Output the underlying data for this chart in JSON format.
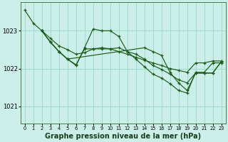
{
  "background_color": "#cceee8",
  "grid_color": "#99ddcc",
  "line_color": "#1a5c1a",
  "xlabel": "Graphe pression niveau de la mer (hPa)",
  "xlabel_fontsize": 7.0,
  "ylabel_ticks": [
    1021,
    1022,
    1023
  ],
  "xlim": [
    -0.5,
    23.5
  ],
  "ylim": [
    1020.55,
    1023.75
  ],
  "xticks": [
    0,
    1,
    2,
    3,
    4,
    5,
    6,
    7,
    8,
    9,
    10,
    11,
    12,
    13,
    14,
    15,
    16,
    17,
    18,
    19,
    20,
    21,
    22,
    23
  ],
  "series1_x": [
    0,
    1,
    2,
    3,
    4,
    5,
    6,
    7,
    8,
    9,
    10,
    11,
    12,
    13,
    14,
    15,
    16,
    17,
    18,
    19,
    20,
    21,
    22,
    23
  ],
  "series1_y": [
    1023.55,
    1023.2,
    1023.0,
    1022.8,
    1022.6,
    1022.5,
    1022.38,
    1022.42,
    1022.52,
    1022.55,
    1022.52,
    1022.45,
    1022.38,
    1022.3,
    1022.22,
    1022.15,
    1022.08,
    1022.0,
    1021.95,
    1021.9,
    1022.15,
    1022.15,
    1022.2,
    1022.2
  ],
  "series2_x": [
    2,
    3,
    4,
    5,
    6,
    7,
    8,
    9,
    10,
    11,
    12,
    13,
    14,
    15,
    16,
    17,
    18,
    19,
    20,
    21,
    22,
    23
  ],
  "series2_y": [
    1023.0,
    1022.7,
    1022.45,
    1022.25,
    1022.08,
    1022.55,
    1023.05,
    1023.0,
    1023.0,
    1022.85,
    1022.45,
    1022.25,
    1022.05,
    1021.85,
    1021.75,
    1021.6,
    1021.42,
    1021.35,
    1021.9,
    1021.9,
    1022.15,
    1022.15
  ],
  "series3_x": [
    2,
    3,
    4,
    5,
    6,
    7,
    8,
    9,
    10,
    11,
    12,
    13,
    14,
    15,
    16,
    17,
    18,
    19,
    20,
    21,
    22,
    23
  ],
  "series3_y": [
    1023.0,
    1022.7,
    1022.45,
    1022.25,
    1022.1,
    1022.52,
    1022.52,
    1022.52,
    1022.52,
    1022.55,
    1022.45,
    1022.38,
    1022.25,
    1022.08,
    1021.98,
    1021.85,
    1021.7,
    1021.62,
    1021.88,
    1021.88,
    1021.88,
    1022.18
  ],
  "series4_x": [
    2,
    3,
    4,
    5,
    14,
    15,
    16,
    17,
    18,
    19,
    20,
    21,
    22,
    23
  ],
  "series4_y": [
    1023.0,
    1022.7,
    1022.45,
    1022.25,
    1022.55,
    1022.45,
    1022.35,
    1021.9,
    1021.62,
    1021.42,
    1021.88,
    1021.88,
    1021.88,
    1022.18
  ]
}
